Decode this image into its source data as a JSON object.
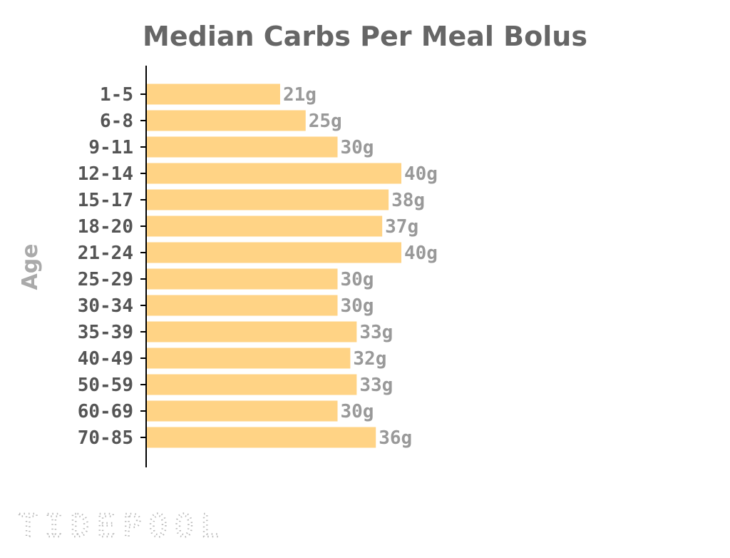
{
  "logo": {
    "text": "TIDEPOOL"
  },
  "chart_data": {
    "type": "bar",
    "orientation": "horizontal",
    "title": "Median Carbs Per Meal Bolus",
    "xlabel": "",
    "ylabel": "Age",
    "categories": [
      "1-5",
      "6-8",
      "9-11",
      "12-14",
      "15-17",
      "18-20",
      "21-24",
      "25-29",
      "30-34",
      "35-39",
      "40-49",
      "50-59",
      "60-69",
      "70-85"
    ],
    "values": [
      21,
      25,
      30,
      40,
      38,
      37,
      40,
      30,
      30,
      33,
      32,
      33,
      30,
      36
    ],
    "value_labels": [
      "21g",
      "25g",
      "30g",
      "40g",
      "38g",
      "37g",
      "40g",
      "30g",
      "30g",
      "33g",
      "32g",
      "33g",
      "30g",
      "36g"
    ],
    "xlim": [
      0,
      40
    ],
    "grid": false,
    "colors": {
      "bar": "#FFD385",
      "axis": "#000000",
      "title": "#666666",
      "tick_label": "#555555",
      "value_label": "#999999",
      "ylabel": "#aaaaaa"
    }
  }
}
